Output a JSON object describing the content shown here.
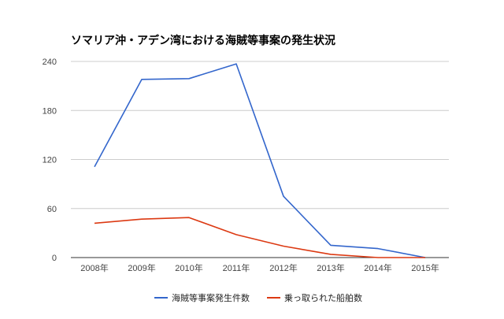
{
  "chart_data": {
    "type": "line",
    "title": "ソマリア沖・アデン湾における海賊等事案の発生状況",
    "categories": [
      "2008年",
      "2009年",
      "2010年",
      "2011年",
      "2012年",
      "2013年",
      "2014年",
      "2015年"
    ],
    "ylim": [
      0,
      240
    ],
    "yticks": [
      0,
      60,
      120,
      180,
      240
    ],
    "grid": true,
    "legend_position": "bottom",
    "series": [
      {
        "name": "海賊等事案発生件数",
        "color": "#3366cc",
        "values": [
          111,
          218,
          219,
          237,
          75,
          15,
          11,
          0
        ]
      },
      {
        "name": "乗っ取られた船舶数",
        "color": "#dc3912",
        "values": [
          42,
          47,
          49,
          28,
          14,
          4,
          0,
          0
        ]
      }
    ]
  }
}
